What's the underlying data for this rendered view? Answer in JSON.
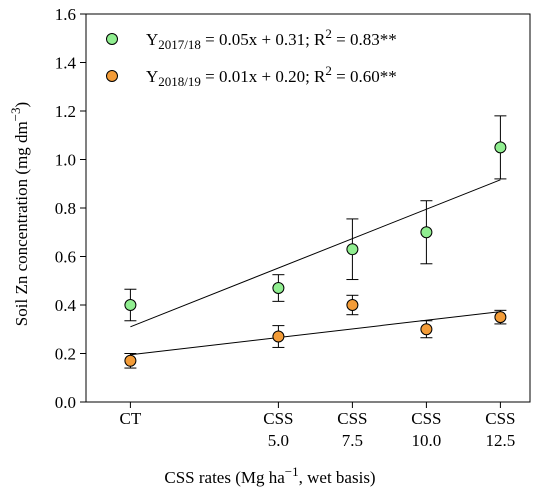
{
  "chart_data": {
    "type": "scatter",
    "title": "",
    "xlabel": {
      "main": "CSS rates (Mg ha",
      "sup": "−1",
      "rest": ", wet basis)"
    },
    "ylabel": {
      "main": "Soil Zn concentration (mg dm",
      "sup": "−3",
      "rest": ")"
    },
    "ylim": [
      0.0,
      1.6
    ],
    "yticks": [
      "0.0",
      "0.2",
      "0.4",
      "0.6",
      "0.8",
      "1.0",
      "1.2",
      "1.4",
      "1.6"
    ],
    "x": [
      0,
      5.0,
      7.5,
      10.0,
      12.5
    ],
    "xlim": [
      -1.5,
      13.5
    ],
    "xtick_labels": [
      {
        "line1": "CT",
        "line2": ""
      },
      {
        "line1": "CSS",
        "line2": "5.0"
      },
      {
        "line1": "CSS",
        "line2": "7.5"
      },
      {
        "line1": "CSS",
        "line2": "10.0"
      },
      {
        "line1": "CSS",
        "line2": "12.5"
      }
    ],
    "grid": false,
    "legend_position": "top-left",
    "series": [
      {
        "legend": {
          "y": "Y",
          "sub": "2017/18",
          "eq": " = 0.05x + 0.31; R",
          "sup": "2",
          "end": " = 0.83**"
        },
        "color": "#90ee90",
        "values": [
          0.4,
          0.47,
          0.63,
          0.7,
          1.05
        ],
        "errors": [
          0.065,
          0.055,
          0.125,
          0.13,
          0.13
        ],
        "fit": {
          "slope": 0.0485,
          "intercept": 0.31
        }
      },
      {
        "legend": {
          "y": "Y",
          "sub": "2018/19",
          "eq": " = 0.01x + 0.20; R",
          "sup": "2",
          "end": " = 0.60**"
        },
        "color": "#f39c38",
        "values": [
          0.17,
          0.27,
          0.4,
          0.3,
          0.35
        ],
        "errors": [
          0.03,
          0.045,
          0.04,
          0.035,
          0.028
        ],
        "fit": {
          "slope": 0.0142,
          "intercept": 0.195
        }
      }
    ]
  }
}
